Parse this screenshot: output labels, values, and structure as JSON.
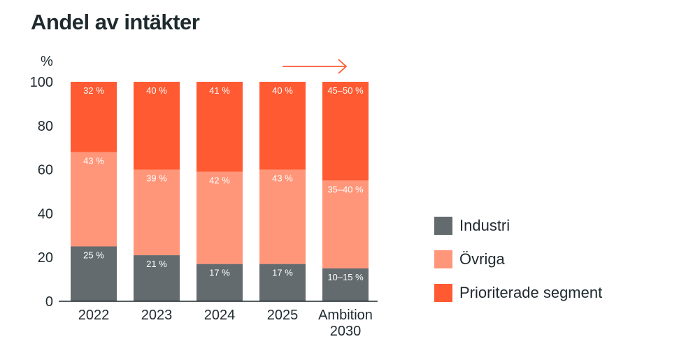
{
  "chart_data": {
    "type": "bar",
    "stacked": true,
    "title": "Andel av intäkter",
    "ylabel": "%",
    "xlabel": "",
    "ylim": [
      0,
      100
    ],
    "yticks": [
      "0",
      "20",
      "40",
      "60",
      "80",
      "100"
    ],
    "categories": [
      "2022",
      "2023",
      "2024",
      "2025",
      "Ambition 2030"
    ],
    "legend_position": "right",
    "grid": false,
    "series": [
      {
        "name": "Industri",
        "color": "#646b6e",
        "values": [
          25,
          21,
          17,
          17,
          15
        ],
        "labels": [
          "25 %",
          "21 %",
          "17 %",
          "17 %",
          "10–15 %"
        ]
      },
      {
        "name": "Övriga",
        "color": "#ff9679",
        "values": [
          43,
          39,
          42,
          43,
          40
        ],
        "labels": [
          "43 %",
          "39 %",
          "42 %",
          "43 %",
          "35–40 %"
        ]
      },
      {
        "name": "Prioriterade segment",
        "color": "#ff5a32",
        "values": [
          32,
          40,
          41,
          40,
          45
        ],
        "labels": [
          "32 %",
          "40 %",
          "41 %",
          "40 %",
          "45–50 %"
        ]
      }
    ],
    "annotation_arrow_color": "#ff5a32"
  }
}
